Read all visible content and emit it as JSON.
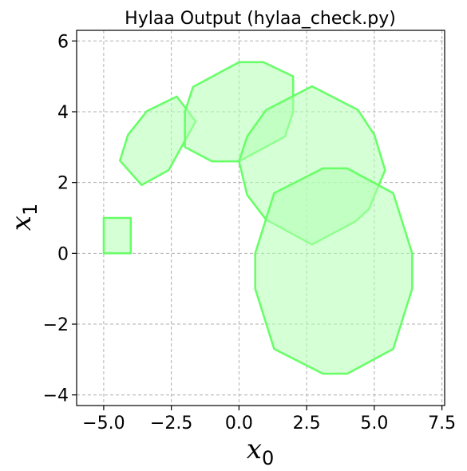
{
  "chart_data": {
    "type": "polygon",
    "title": "Hylaa Output (hylaa_check.py)",
    "xlabel": {
      "base": "x",
      "subscript": "0"
    },
    "ylabel": {
      "base": "x",
      "subscript": "1"
    },
    "xlim": [
      -6.0,
      7.6
    ],
    "ylim": [
      -4.3,
      6.3
    ],
    "xticks": [
      -5.0,
      -2.5,
      0.0,
      2.5,
      5.0,
      7.5
    ],
    "xtick_labels": [
      "−5.0",
      "−2.5",
      "0.0",
      "2.5",
      "5.0",
      "7.5"
    ],
    "yticks": [
      -4,
      -2,
      0,
      2,
      4,
      6
    ],
    "ytick_labels": [
      "−4",
      "−2",
      "0",
      "2",
      "4",
      "6"
    ],
    "grid": true,
    "fill_color": "#b2ffb2",
    "fill_opacity": 0.55,
    "edge_color": "#66ff66",
    "polygons": [
      {
        "name": "",
        "points": [
          [
            -5.0,
            0.0
          ],
          [
            -4.0,
            0.0
          ],
          [
            -4.0,
            1.0
          ],
          [
            -5.0,
            1.0
          ]
        ]
      },
      {
        "name": "",
        "points": [
          [
            -4.4,
            2.62
          ],
          [
            -3.6,
            1.93
          ],
          [
            -2.6,
            2.35
          ],
          [
            -1.6,
            3.73
          ],
          [
            -2.3,
            4.43
          ],
          [
            -3.4,
            4.02
          ],
          [
            -4.1,
            3.35
          ]
        ]
      },
      {
        "name": "",
        "points": [
          [
            -2.0,
            3.0
          ],
          [
            -1.0,
            2.6
          ],
          [
            0.0,
            2.6
          ],
          [
            1.7,
            3.3
          ],
          [
            2.0,
            4.0
          ],
          [
            2.0,
            5.0
          ],
          [
            0.9,
            5.4
          ],
          [
            0.0,
            5.4
          ],
          [
            -1.7,
            4.7
          ],
          [
            -2.0,
            4.0
          ]
        ]
      },
      {
        "name": "",
        "points": [
          [
            0.0,
            2.6
          ],
          [
            0.3,
            3.3
          ],
          [
            1.0,
            4.05
          ],
          [
            2.7,
            4.72
          ],
          [
            4.4,
            4.05
          ],
          [
            5.0,
            3.35
          ],
          [
            5.4,
            2.35
          ],
          [
            4.8,
            1.25
          ],
          [
            4.3,
            0.9
          ],
          [
            2.7,
            0.25
          ],
          [
            1.0,
            0.95
          ],
          [
            0.3,
            1.65
          ]
        ]
      },
      {
        "name": "",
        "points": [
          [
            3.1,
            2.4
          ],
          [
            4.0,
            2.4
          ],
          [
            5.7,
            1.7
          ],
          [
            6.4,
            0.0
          ],
          [
            6.4,
            -1.0
          ],
          [
            5.7,
            -2.7
          ],
          [
            4.0,
            -3.4
          ],
          [
            3.1,
            -3.4
          ],
          [
            1.3,
            -2.7
          ],
          [
            0.6,
            -1.0
          ],
          [
            0.6,
            0.0
          ],
          [
            1.3,
            1.7
          ]
        ]
      }
    ]
  }
}
